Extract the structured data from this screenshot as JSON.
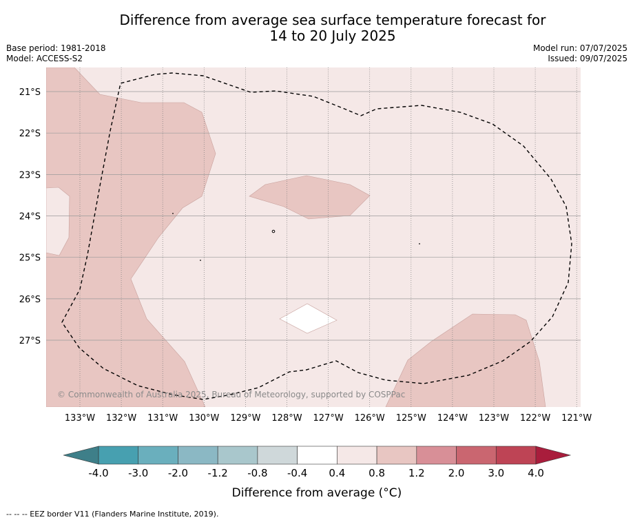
{
  "title_line1": "Difference from average sea surface temperature forecast for",
  "title_line2": "14 to 20 July 2025",
  "meta": {
    "base_period": "Base period: 1981-2018",
    "model": "Model: ACCESS-S2",
    "model_run": "Model run: 07/07/2025",
    "issued": "Issued: 09/07/2025"
  },
  "copyright": "© Commonwealth of Australia 2025, Bureau of Meteorology, supported by COSPPac",
  "footnote": "-- -- -- EEZ border V11 (Flanders Marine Institute, 2019).",
  "map": {
    "lat_labels": [
      "21°S",
      "22°S",
      "23°S",
      "24°S",
      "25°S",
      "26°S",
      "27°S"
    ],
    "lon_labels": [
      "133°W",
      "132°W",
      "131°W",
      "130°W",
      "129°W",
      "128°W",
      "127°W",
      "126°W",
      "125°W",
      "124°W",
      "123°W",
      "122°W",
      "121°W"
    ]
  },
  "colorbar": {
    "title": "Difference from average (°C)",
    "ticks": [
      "-4.0",
      "-3.0",
      "-2.0",
      "-1.2",
      "-0.8",
      "-0.4",
      "0.4",
      "0.8",
      "1.2",
      "2.0",
      "3.0",
      "4.0"
    ],
    "colors": {
      "under": "#3e7f89",
      "bins": [
        "#47a0b0",
        "#6aafbd",
        "#8bb8c4",
        "#a9c7cc",
        "#cfd8da",
        "#ffffff",
        "#f5e8e7",
        "#e8c6c2",
        "#d88f97",
        "#ca6670",
        "#be4455"
      ],
      "over": "#a91d3c"
    }
  }
}
